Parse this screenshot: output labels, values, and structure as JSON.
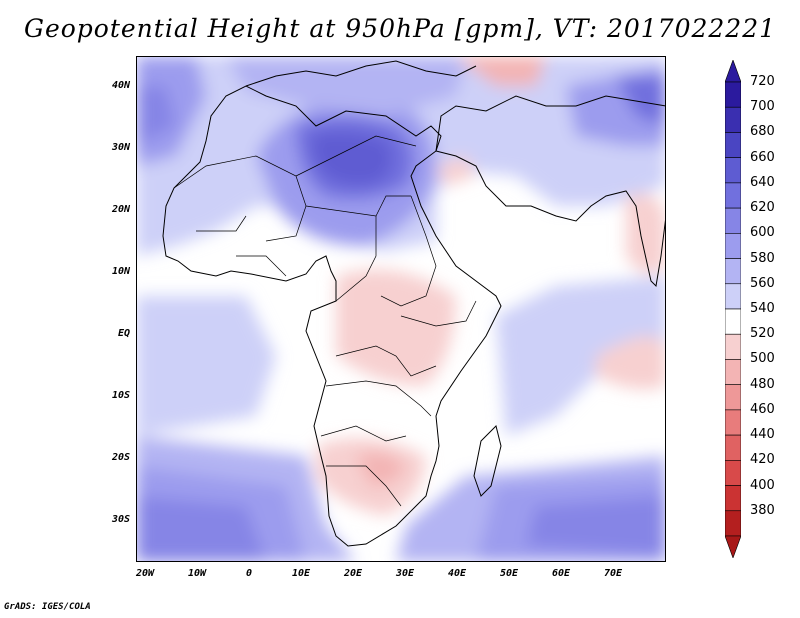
{
  "title": "Geopotential Height at 950hPa [gpm], VT: 2017022221",
  "credit": "GrADS: IGES/COLA",
  "map": {
    "region": "Africa and Middle East",
    "lat_range": [
      -37,
      45
    ],
    "lon_range": [
      -22,
      80
    ],
    "lat_labels": [
      "40N",
      "30N",
      "20N",
      "10N",
      "EQ",
      "10S",
      "20S",
      "30S"
    ],
    "lon_labels": [
      "20W",
      "10W",
      "0",
      "10E",
      "20E",
      "30E",
      "40E",
      "50E",
      "60E",
      "70E"
    ]
  },
  "colorbar": {
    "labels": [
      "720",
      "700",
      "680",
      "660",
      "640",
      "620",
      "600",
      "580",
      "560",
      "540",
      "520",
      "500",
      "480",
      "460",
      "440",
      "420",
      "400",
      "380"
    ],
    "colors": [
      "#2b1a9e",
      "#3a2fb0",
      "#4a45c2",
      "#5e5cd2",
      "#7170de",
      "#8685e6",
      "#9c9cee",
      "#b3b4f3",
      "#cdd0f8",
      "#ffffff",
      "#f7d0d0",
      "#f3b4b4",
      "#ee9898",
      "#e87c7c",
      "#e06262",
      "#d84a4a",
      "#cb3333",
      "#b41f1f"
    ],
    "top_arrow_color": "#2b1a9e",
    "bottom_arrow_color": "#a81818"
  }
}
